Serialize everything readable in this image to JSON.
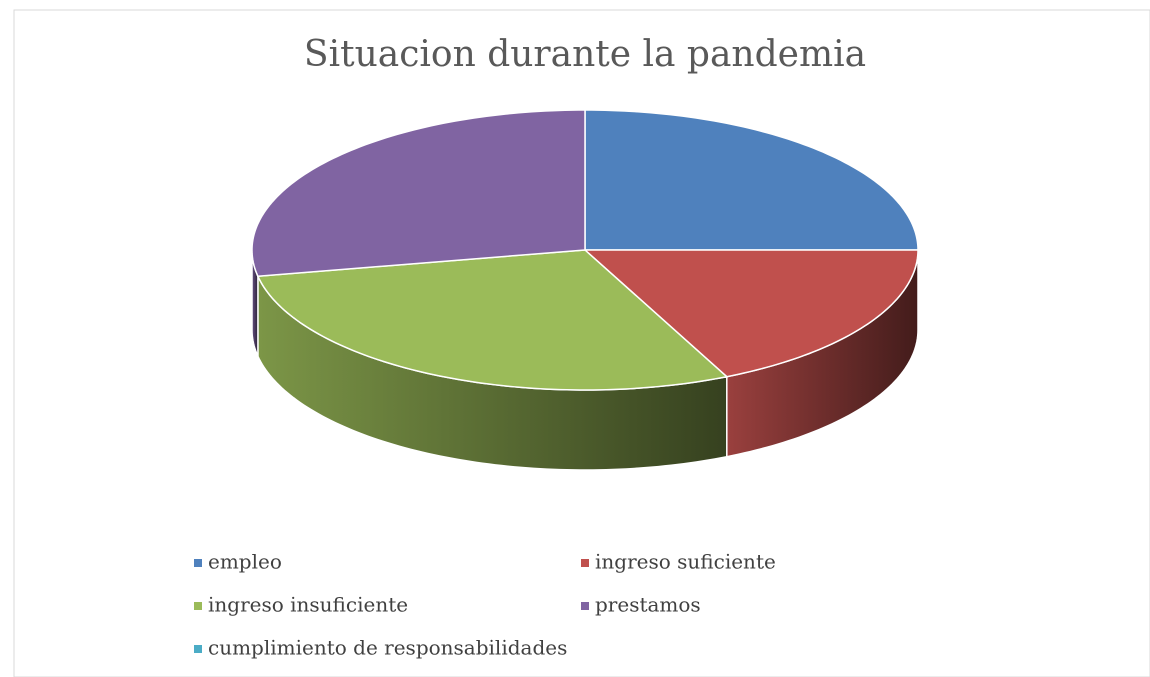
{
  "chart_data": {
    "type": "pie",
    "title": "Situacion durante la pandemia",
    "categories": [
      "empleo",
      "ingreso suficiente",
      "ingreso insuficiente",
      "prestamos",
      "cumplimiento de responsabilidades"
    ],
    "values": [
      25,
      18,
      29,
      28,
      0
    ],
    "colors": [
      "#4f81bd",
      "#c0504d",
      "#9bbb59",
      "#8064a2",
      "#4bacc6"
    ],
    "legend": "bottom",
    "three_d": true
  }
}
